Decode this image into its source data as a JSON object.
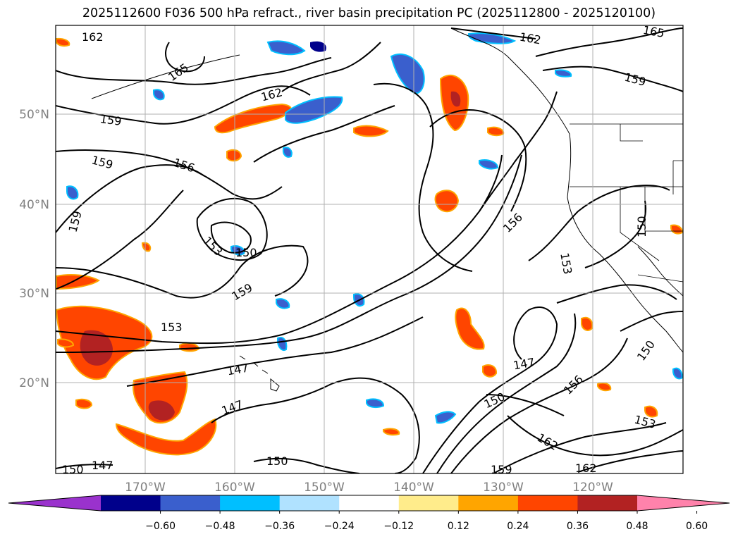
{
  "title": "2025112600 F036 500 hPa refract., river basin precipitation PC (2025112800 - 2025120100)",
  "map": {
    "lat_labels": [
      {
        "text": "50°N",
        "lat": 50
      },
      {
        "text": "40°N",
        "lat": 40
      },
      {
        "text": "30°N",
        "lat": 30
      },
      {
        "text": "20°N",
        "lat": 20
      }
    ],
    "lon_labels": [
      {
        "text": "170°W",
        "lon": -170
      },
      {
        "text": "160°W",
        "lon": -160
      },
      {
        "text": "150°W",
        "lon": -150
      },
      {
        "text": "140°W",
        "lon": -140
      },
      {
        "text": "130°W",
        "lon": -130
      },
      {
        "text": "120°W",
        "lon": -120
      }
    ],
    "contour_labels": [
      "162",
      "165",
      "162",
      "162",
      "165",
      "159",
      "159",
      "159",
      "156",
      "159",
      "153",
      "150",
      "159",
      "156",
      "153",
      "150",
      "153",
      "147",
      "147",
      "147",
      "150",
      "156",
      "150",
      "162",
      "159",
      "162",
      "147",
      "150",
      "150",
      "153"
    ]
  },
  "colorbar": {
    "ticks": [
      "−0.60",
      "−0.48",
      "−0.36",
      "−0.24",
      "−0.12",
      "0.12",
      "0.24",
      "0.36",
      "0.48",
      "0.60"
    ],
    "colors": [
      "#9a32cd",
      "#00008b",
      "#3a5fcd",
      "#00bfff",
      "#b0e2ff",
      "#ffffff",
      "#ffec8b",
      "#ffa500",
      "#ff4500",
      "#b22222",
      "#ff82ab"
    ]
  }
}
